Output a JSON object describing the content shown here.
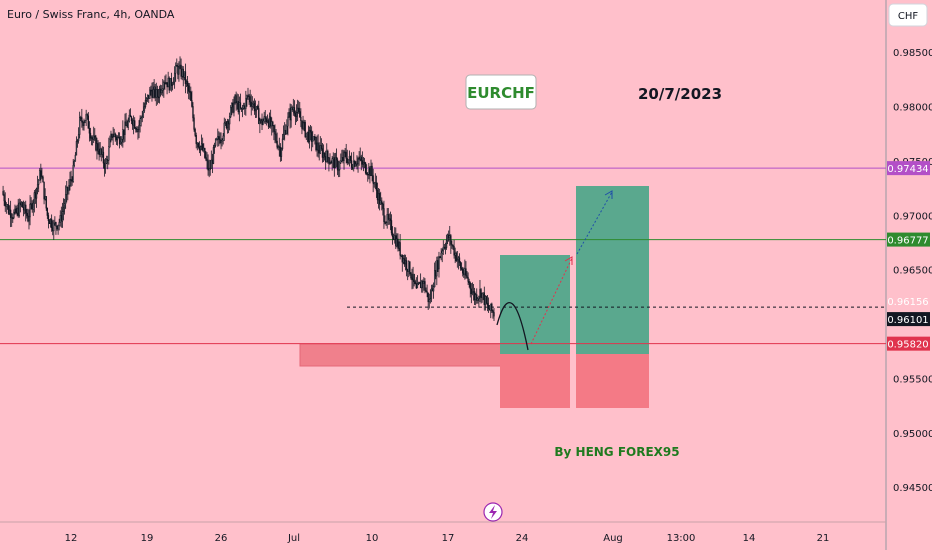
{
  "header": {
    "title": "Euro / Swiss Franc, 4h, OANDA"
  },
  "currency_button": {
    "label": "CHF"
  },
  "annotations": {
    "symbol_badge": "EURCHF",
    "date": "20/7/2023",
    "author": "By HENG FOREX95"
  },
  "colors": {
    "background": "#ffc0cb",
    "up_candle": "#131722",
    "down_candle": "#131722",
    "upper_line": "#b34fc7",
    "entry_line": "#2e8b2e",
    "stop_line": "#e0334d",
    "profit_zone": "#5aa88e",
    "loss_zone": "#f47a86",
    "support_zone": "#f0808c"
  },
  "chart_data": {
    "type": "candlestick",
    "title": "Euro / Swiss Franc, 4h, OANDA",
    "ylim": [
      0.9418,
      0.9898
    ],
    "y_ticks": [
      "0.98500",
      "0.98000",
      "0.97500",
      "0.97000",
      "0.96500",
      "0.95500",
      "0.95000",
      "0.94500"
    ],
    "x_ticks": [
      "12",
      "19",
      "26",
      "Jul",
      "10",
      "17",
      "24",
      "Aug",
      "13:00",
      "14",
      "21"
    ],
    "price_tags": [
      {
        "label": "0.97434",
        "value": 0.97434,
        "color": "#b34fc7"
      },
      {
        "label": "0.96777",
        "value": 0.96777,
        "color": "#2e8b2e"
      },
      {
        "label": "0.96156",
        "value": 0.96156,
        "color": "#9aa0aa"
      },
      {
        "label": "0.96101",
        "value": 0.96101,
        "color": "#131722"
      },
      {
        "label": "0.95820",
        "value": 0.9582,
        "color": "#e0334d"
      }
    ],
    "levels": [
      {
        "value": 0.97434,
        "style": "solid"
      },
      {
        "value": 0.96777,
        "style": "solid"
      },
      {
        "value": 0.9582,
        "style": "solid"
      },
      {
        "value": 0.96156,
        "style": "dashed"
      }
    ],
    "price_path": [
      0.9722,
      0.9705,
      0.97,
      0.971,
      0.9698,
      0.9718,
      0.974,
      0.97,
      0.969,
      0.9695,
      0.972,
      0.974,
      0.9785,
      0.979,
      0.977,
      0.976,
      0.9745,
      0.9775,
      0.977,
      0.978,
      0.979,
      0.978,
      0.98,
      0.9815,
      0.981,
      0.9825,
      0.982,
      0.9835,
      0.983,
      0.981,
      0.977,
      0.976,
      0.974,
      0.9765,
      0.9775,
      0.979,
      0.9805,
      0.9795,
      0.981,
      0.98,
      0.9785,
      0.979,
      0.9775,
      0.976,
      0.9785,
      0.98,
      0.979,
      0.9775,
      0.977,
      0.976,
      0.9755,
      0.975,
      0.9745,
      0.9755,
      0.9748,
      0.9752,
      0.9745,
      0.974,
      0.972,
      0.97,
      0.969,
      0.9675,
      0.966,
      0.965,
      0.963,
      0.964,
      0.962,
      0.965,
      0.967,
      0.968,
      0.9665,
      0.965,
      0.964,
      0.9625,
      0.963,
      0.9615,
      0.961
    ]
  }
}
